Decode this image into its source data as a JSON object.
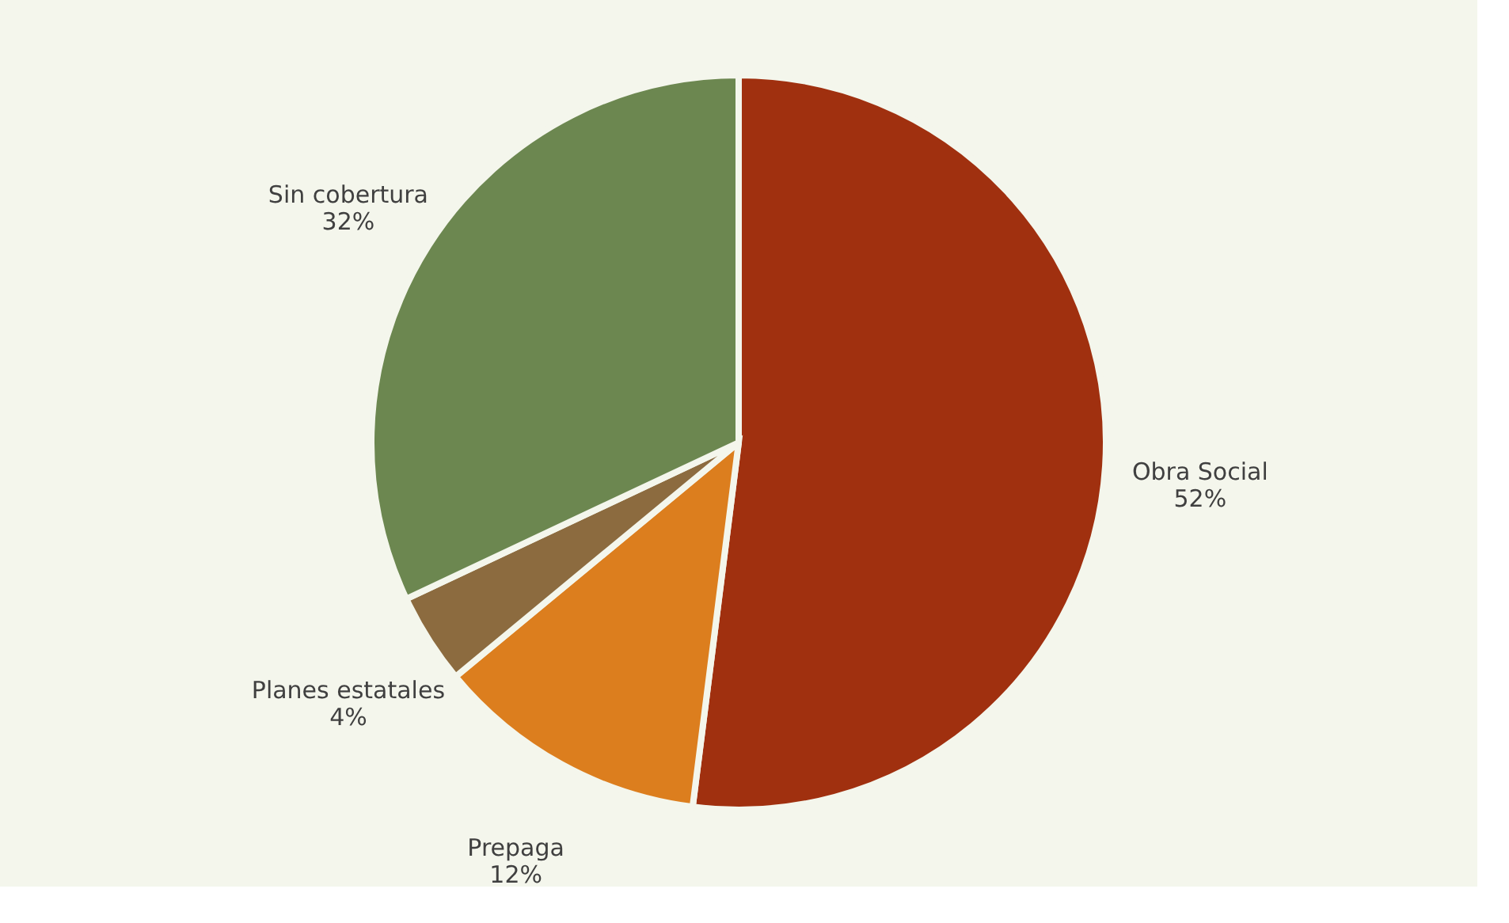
{
  "chart_data": {
    "type": "pie",
    "categories": [
      "Obra Social",
      "Prepaga",
      "Planes estatales",
      "Sin cobertura"
    ],
    "values": [
      52,
      12,
      4,
      32
    ],
    "value_labels": [
      "52%",
      "12%",
      "4%",
      "32%"
    ],
    "colors": [
      "#a0300f",
      "#dc7e1e",
      "#8c6b3f",
      "#6c8750"
    ],
    "legend": false
  }
}
